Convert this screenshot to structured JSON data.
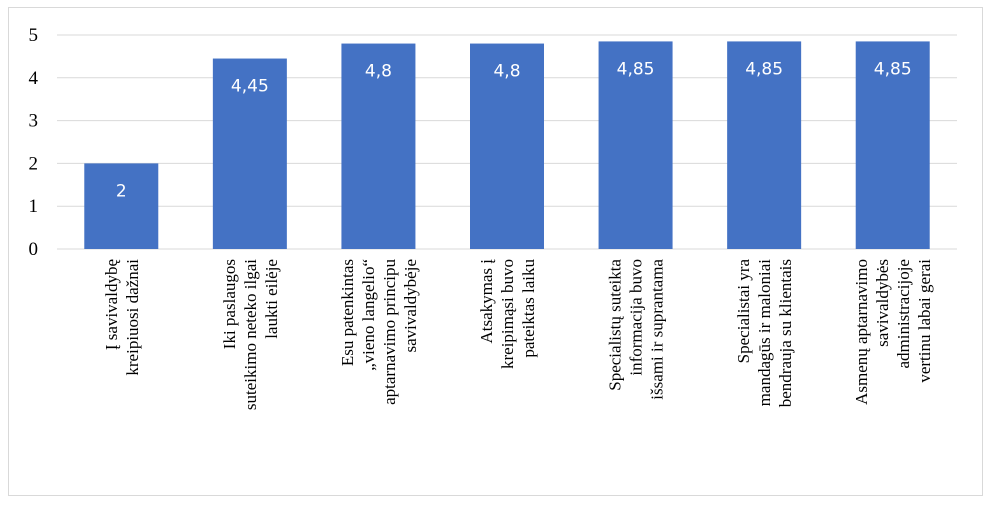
{
  "chart_data": {
    "type": "bar",
    "categories": [
      [
        "Į savivaldybę",
        "kreipiuosi dažnai"
      ],
      [
        "Iki paslaugos",
        "suteikimo neteko ilgai",
        "laukti eilėje"
      ],
      [
        "Esu patenkintas",
        "„vieno langelio“",
        "aptarnavimo principu",
        "savivaldybėje"
      ],
      [
        "Atsakymas į",
        "kreipimąsi buvo",
        "pateiktas laiku"
      ],
      [
        "Specialistų suteikta",
        "informacija buvo",
        "išsami ir suprantama"
      ],
      [
        "Specialistai yra",
        "mandagūs ir maloniai",
        "bendrauja su klientais"
      ],
      [
        "Asmenų aptarnavimo",
        "savivaldybės",
        "administracijoje",
        "vertinu labai gerai"
      ]
    ],
    "values": [
      2,
      4.45,
      4.8,
      4.8,
      4.85,
      4.85,
      4.85
    ],
    "value_labels": [
      "2",
      "4,45",
      "4,8",
      "4,8",
      "4,85",
      "4,85",
      "4,85"
    ],
    "ylim": [
      0,
      5
    ],
    "yticks": [
      "0",
      "1",
      "2",
      "3",
      "4",
      "5"
    ],
    "grid": true,
    "bar_color": "#4472c4",
    "grid_color": "#d9d9d9"
  }
}
